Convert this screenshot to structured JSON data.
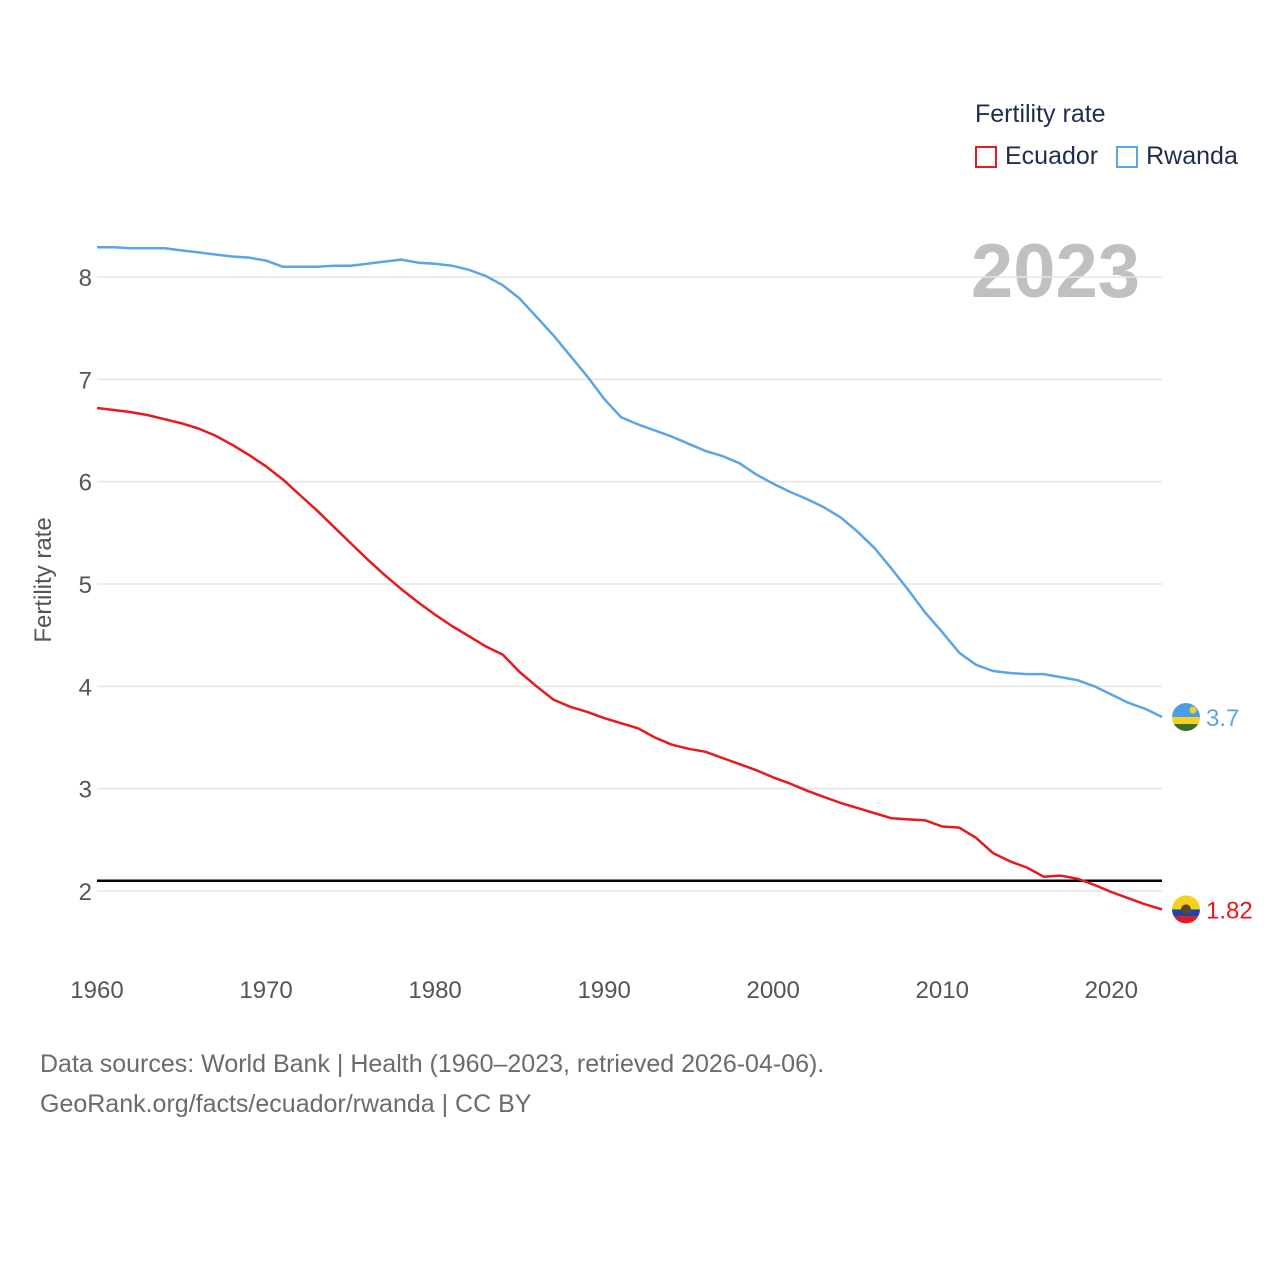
{
  "legend": {
    "title": "Fertility rate",
    "items": [
      {
        "name": "Ecuador",
        "color": "#e8191c"
      },
      {
        "name": "Rwanda",
        "color": "#5aa5e6"
      }
    ]
  },
  "year_label": "2023",
  "footer": {
    "line1": "Data sources: World Bank | Health (1960–2023, retrieved 2026-04-06).",
    "line2": "GeoRank.org/facts/ecuador/rwanda | CC BY"
  },
  "chart_data": {
    "type": "line",
    "ylabel": "Fertility rate",
    "xlabel": "",
    "xlim": [
      1960,
      2023
    ],
    "ylim": [
      1.5,
      8.6
    ],
    "yticks": [
      2,
      3,
      4,
      5,
      6,
      7,
      8
    ],
    "xticks": [
      1960,
      1970,
      1980,
      1990,
      2000,
      2010,
      2020
    ],
    "reference_line": {
      "y": 2.1,
      "color": "#000000"
    },
    "series": [
      {
        "name": "Rwanda",
        "color": "#5aa5e6",
        "end_label": "3.7",
        "x": [
          1960,
          1961,
          1962,
          1963,
          1964,
          1965,
          1966,
          1967,
          1968,
          1969,
          1970,
          1971,
          1972,
          1973,
          1974,
          1975,
          1976,
          1977,
          1978,
          1979,
          1980,
          1981,
          1982,
          1983,
          1984,
          1985,
          1986,
          1987,
          1988,
          1989,
          1990,
          1991,
          1992,
          1993,
          1994,
          1995,
          1996,
          1997,
          1998,
          1999,
          2000,
          2001,
          2002,
          2003,
          2004,
          2005,
          2006,
          2007,
          2008,
          2009,
          2010,
          2011,
          2012,
          2013,
          2014,
          2015,
          2016,
          2017,
          2018,
          2019,
          2020,
          2021,
          2022,
          2023
        ],
        "y": [
          8.29,
          8.29,
          8.28,
          8.28,
          8.28,
          8.26,
          8.24,
          8.22,
          8.2,
          8.19,
          8.16,
          8.1,
          8.1,
          8.1,
          8.11,
          8.11,
          8.13,
          8.15,
          8.17,
          8.14,
          8.13,
          8.11,
          8.07,
          8.01,
          7.92,
          7.79,
          7.61,
          7.43,
          7.23,
          7.03,
          6.81,
          6.63,
          6.56,
          6.5,
          6.44,
          6.37,
          6.3,
          6.25,
          6.18,
          6.07,
          5.98,
          5.9,
          5.83,
          5.75,
          5.65,
          5.51,
          5.35,
          5.15,
          4.94,
          4.72,
          4.53,
          4.33,
          4.21,
          4.15,
          4.13,
          4.12,
          4.12,
          4.09,
          4.06,
          4.0,
          3.92,
          3.84,
          3.78,
          3.7
        ]
      },
      {
        "name": "Ecuador",
        "color": "#e8191c",
        "end_label": "1.82",
        "x": [
          1960,
          1961,
          1962,
          1963,
          1964,
          1965,
          1966,
          1967,
          1968,
          1969,
          1970,
          1971,
          1972,
          1973,
          1974,
          1975,
          1976,
          1977,
          1978,
          1979,
          1980,
          1981,
          1982,
          1983,
          1984,
          1985,
          1986,
          1987,
          1988,
          1989,
          1990,
          1991,
          1992,
          1993,
          1994,
          1995,
          1996,
          1997,
          1998,
          1999,
          2000,
          2001,
          2002,
          2003,
          2004,
          2005,
          2006,
          2007,
          2008,
          2009,
          2010,
          2011,
          2012,
          2013,
          2014,
          2015,
          2016,
          2017,
          2018,
          2019,
          2020,
          2021,
          2022,
          2023
        ],
        "y": [
          6.72,
          6.7,
          6.68,
          6.65,
          6.61,
          6.57,
          6.52,
          6.45,
          6.36,
          6.26,
          6.15,
          6.02,
          5.87,
          5.72,
          5.56,
          5.4,
          5.24,
          5.09,
          4.95,
          4.82,
          4.7,
          4.59,
          4.49,
          4.39,
          4.31,
          4.14,
          4.0,
          3.87,
          3.8,
          3.75,
          3.69,
          3.64,
          3.59,
          3.5,
          3.43,
          3.39,
          3.36,
          3.3,
          3.24,
          3.18,
          3.11,
          3.05,
          2.98,
          2.92,
          2.86,
          2.81,
          2.76,
          2.71,
          2.7,
          2.69,
          2.63,
          2.62,
          2.52,
          2.37,
          2.29,
          2.23,
          2.14,
          2.15,
          2.12,
          2.06,
          1.99,
          1.93,
          1.87,
          1.82
        ]
      }
    ]
  }
}
